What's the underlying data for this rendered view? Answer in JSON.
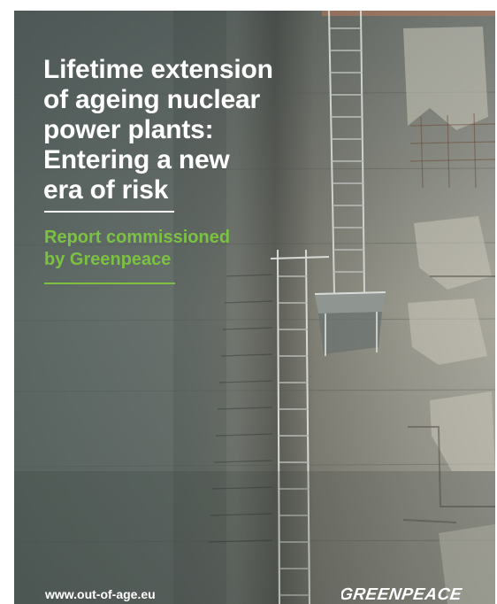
{
  "cover": {
    "title_lines": [
      "Lifetime extension",
      "of ageing nuclear",
      "power plants:",
      "Entering a new",
      "era of risk"
    ],
    "subtitle_lines": [
      "Report commissioned",
      "by Greenpeace"
    ],
    "url": "www.out-of-age.eu",
    "logo_text": "GREENPEACE"
  },
  "colors": {
    "title": "#ffffff",
    "accent_green": "#7cc242"
  }
}
